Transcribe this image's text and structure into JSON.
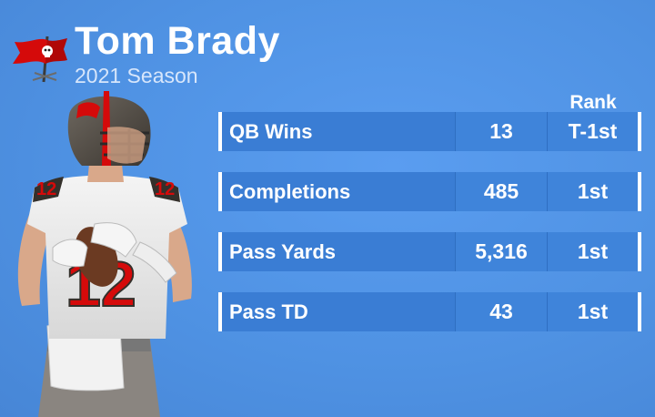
{
  "header": {
    "name": "Tom Brady",
    "season": "2021 Season"
  },
  "table": {
    "rank_header": "Rank",
    "rows": [
      {
        "label": "QB Wins",
        "value": "13",
        "rank": "T-1st"
      },
      {
        "label": "Completions",
        "value": "485",
        "rank": "1st"
      },
      {
        "label": "Pass Yards",
        "value": "5,316",
        "rank": "1st"
      },
      {
        "label": "Pass TD",
        "value": "43",
        "rank": "1st"
      }
    ]
  },
  "colors": {
    "background": "#4f92e3",
    "row_bg": "#3b7ed5",
    "text": "#ffffff",
    "team_red": "#d50a0a",
    "pewter": "#34302b"
  },
  "icons": {
    "logo": "buccaneers-flag-icon"
  }
}
